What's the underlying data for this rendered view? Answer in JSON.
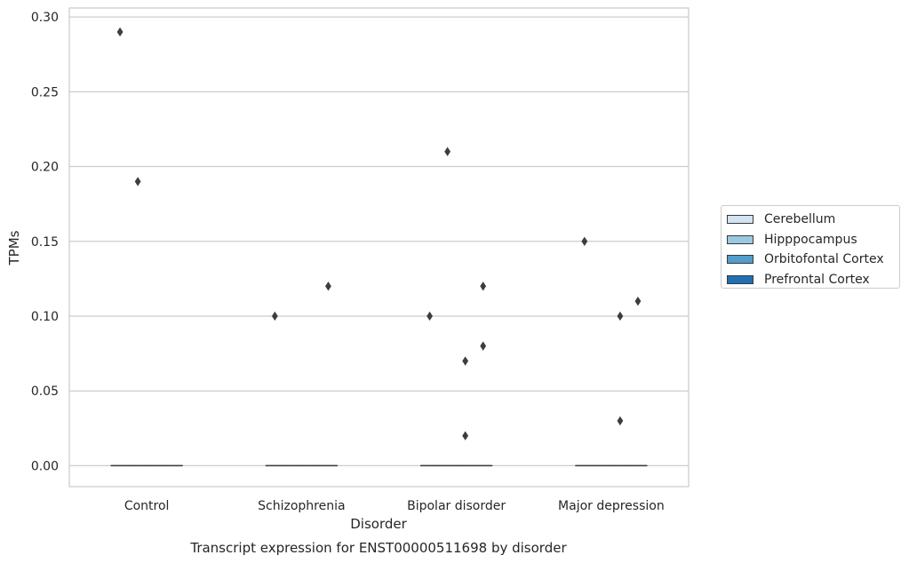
{
  "chart_data": {
    "type": "box",
    "title": "Transcript expression for ENST00000511698 by disorder",
    "xlabel": "Disorder",
    "ylabel": "TPMs",
    "categories": [
      "Control",
      "Schizophrenia",
      "Bipolar disorder",
      "Major depression"
    ],
    "hue": [
      "Cerebellum",
      "Hipppocampus",
      "Orbitofontal Cortex",
      "Prefrontal Cortex"
    ],
    "hue_colors": [
      "#d2e3f3",
      "#9ac8e0",
      "#529dcc",
      "#2070b4"
    ],
    "ylim": [
      -0.014,
      0.306
    ],
    "yticks": [
      "0.00",
      "0.05",
      "0.10",
      "0.15",
      "0.20",
      "0.25",
      "0.30"
    ],
    "ytick_values": [
      0.0,
      0.05,
      0.1,
      0.15,
      0.2,
      0.25,
      0.3
    ],
    "grid": true,
    "legend_position": "right",
    "boxes": [
      {
        "category": "Control",
        "hue": "Cerebellum",
        "q1": 0,
        "median": 0,
        "q3": 0,
        "outliers": [
          0.29
        ]
      },
      {
        "category": "Control",
        "hue": "Hipppocampus",
        "q1": 0,
        "median": 0,
        "q3": 0,
        "outliers": [
          0.19
        ]
      },
      {
        "category": "Control",
        "hue": "Orbitofontal Cortex",
        "q1": 0,
        "median": 0,
        "q3": 0,
        "outliers": []
      },
      {
        "category": "Control",
        "hue": "Prefrontal Cortex",
        "q1": 0,
        "median": 0,
        "q3": 0,
        "outliers": []
      },
      {
        "category": "Schizophrenia",
        "hue": "Cerebellum",
        "q1": 0,
        "median": 0,
        "q3": 0,
        "outliers": [
          0.1
        ]
      },
      {
        "category": "Schizophrenia",
        "hue": "Hipppocampus",
        "q1": 0,
        "median": 0,
        "q3": 0,
        "outliers": []
      },
      {
        "category": "Schizophrenia",
        "hue": "Orbitofontal Cortex",
        "q1": 0,
        "median": 0,
        "q3": 0,
        "outliers": []
      },
      {
        "category": "Schizophrenia",
        "hue": "Prefrontal Cortex",
        "q1": 0,
        "median": 0,
        "q3": 0,
        "outliers": [
          0.12
        ]
      },
      {
        "category": "Bipolar disorder",
        "hue": "Cerebellum",
        "q1": 0,
        "median": 0,
        "q3": 0,
        "outliers": [
          0.1
        ]
      },
      {
        "category": "Bipolar disorder",
        "hue": "Hipppocampus",
        "q1": 0,
        "median": 0,
        "q3": 0,
        "outliers": [
          0.21
        ]
      },
      {
        "category": "Bipolar disorder",
        "hue": "Orbitofontal Cortex",
        "q1": 0,
        "median": 0,
        "q3": 0,
        "outliers": [
          0.07,
          0.02
        ]
      },
      {
        "category": "Bipolar disorder",
        "hue": "Prefrontal Cortex",
        "q1": 0,
        "median": 0,
        "q3": 0,
        "outliers": [
          0.12,
          0.08
        ]
      },
      {
        "category": "Major depression",
        "hue": "Cerebellum",
        "q1": 0,
        "median": 0,
        "q3": 0,
        "outliers": [
          0.15
        ]
      },
      {
        "category": "Major depression",
        "hue": "Hipppocampus",
        "q1": 0,
        "median": 0,
        "q3": 0,
        "outliers": []
      },
      {
        "category": "Major depression",
        "hue": "Orbitofontal Cortex",
        "q1": 0,
        "median": 0,
        "q3": 0,
        "outliers": [
          0.1,
          0.03
        ]
      },
      {
        "category": "Major depression",
        "hue": "Prefrontal Cortex",
        "q1": 0,
        "median": 0,
        "q3": 0,
        "outliers": [
          0.11
        ]
      }
    ]
  }
}
